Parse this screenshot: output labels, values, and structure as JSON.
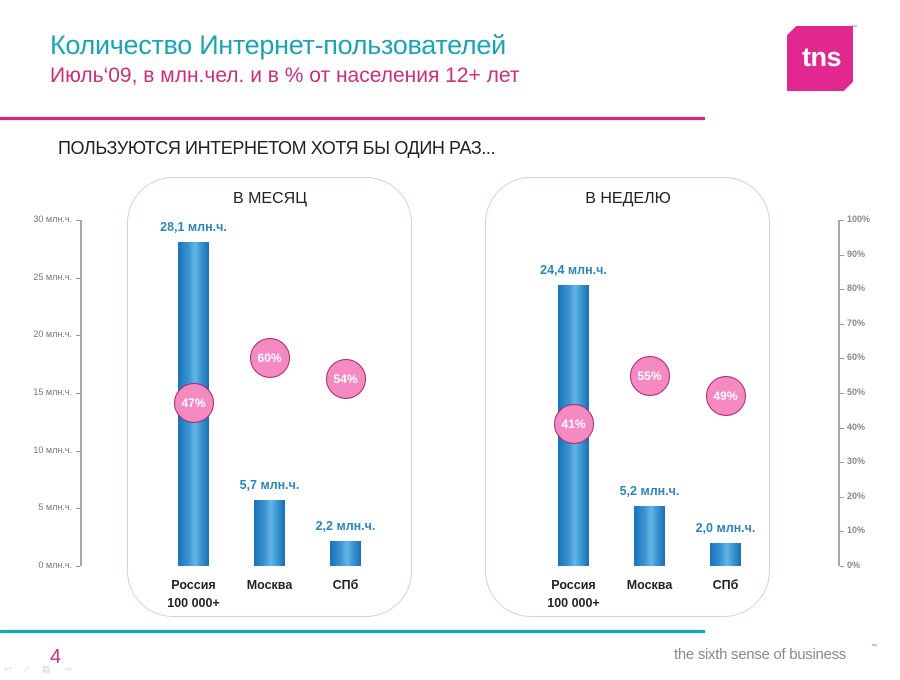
{
  "header": {
    "title": "Количество Интернет-пользователей",
    "subtitle": "Июль‘09, в млн.чел. и в % от населения 12+ лет",
    "logo_text": "tns",
    "logo_tm": "™",
    "accent_colors": {
      "magenta": "#c8307a",
      "teal": "#1ea3b5",
      "logo": "#e0288f",
      "bar": "#2e86b8",
      "circle": "#f58ac2"
    }
  },
  "heading": "ПОЛЬЗУЮТСЯ ИНТЕРНЕТОМ ХОТЯ БЫ ОДИН РАЗ...",
  "footer": {
    "page_number": "4",
    "tagline": "the sixth sense of business",
    "tagline_tm": "™",
    "nav_icons": "↩ ⁄ ▤ ⇨"
  },
  "chart_data": {
    "type": "bar",
    "title": "Количество Интернет-пользователей",
    "subtitle": "Июль‘09, в млн.чел. и в % от населения 12+ лет",
    "left_axis": {
      "label_unit": "млн.ч.",
      "range": [
        0,
        30
      ],
      "ticks": [
        "30 млн.ч.",
        "25 млн.ч.",
        "20 млн.ч.",
        "15 млн.ч.",
        "10 млн.ч.",
        "5 млн.ч.",
        "0 млн.ч."
      ]
    },
    "right_axis": {
      "range": [
        0,
        100
      ],
      "ticks": [
        "100%",
        "90%",
        "80%",
        "70%",
        "60%",
        "50%",
        "40%",
        "30%",
        "20%",
        "10%",
        "0%"
      ]
    },
    "categories": [
      "Россия 100 000+",
      "Москва",
      "СПб"
    ],
    "category_lines": [
      [
        "Россия",
        "100 000+"
      ],
      [
        "Москва"
      ],
      [
        "СПб"
      ]
    ],
    "panels": [
      {
        "title": "В МЕСЯЦ",
        "series": [
          {
            "name": "млн.чел.",
            "values": [
              28.1,
              5.7,
              2.2
            ],
            "labels": [
              "28,1 млн.ч.",
              "5,7 млн.ч.",
              "2,2 млн.ч."
            ]
          },
          {
            "name": "% от населения",
            "values": [
              47,
              60,
              54
            ],
            "labels": [
              "47%",
              "60%",
              "54%"
            ]
          }
        ]
      },
      {
        "title": "В НЕДЕЛЮ",
        "series": [
          {
            "name": "млн.чел.",
            "values": [
              24.4,
              5.2,
              2.0
            ],
            "labels": [
              "24,4 млн.ч.",
              "5,2 млн.ч.",
              "2,0 млн.ч."
            ]
          },
          {
            "name": "% от населения",
            "values": [
              41,
              55,
              49
            ],
            "labels": [
              "41%",
              "55%",
              "49%"
            ]
          }
        ]
      }
    ]
  }
}
